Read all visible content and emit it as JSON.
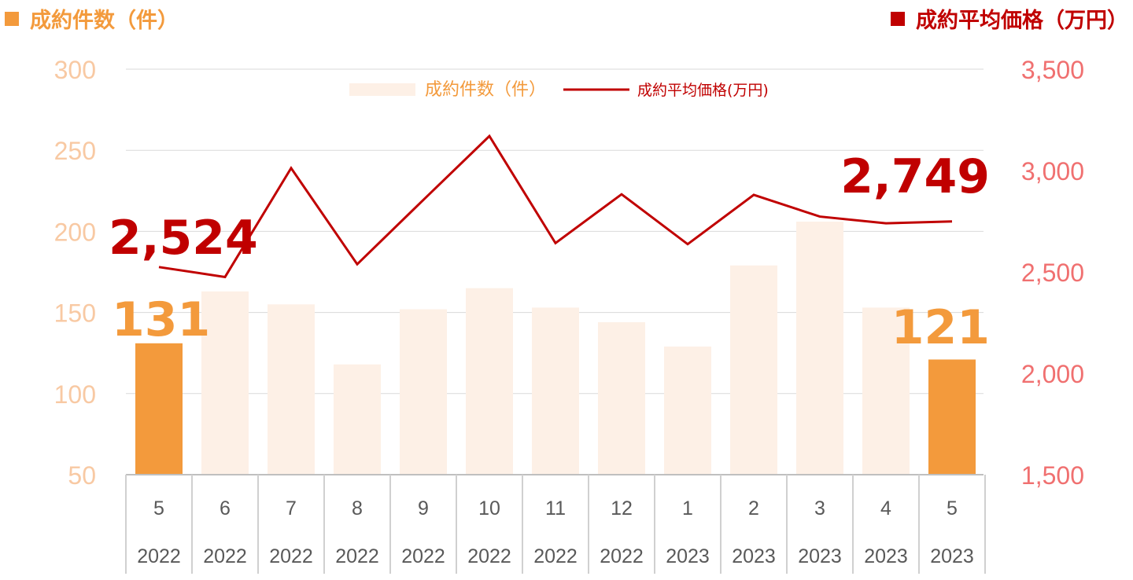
{
  "header": {
    "left_label": "成約件数（件）",
    "right_label": "成約平均価格（万円）"
  },
  "colors": {
    "bar_highlight": "#f39a3c",
    "bar_muted": "#fdf0e6",
    "line": "#c00000",
    "left_axis_text": "#f8c9a3",
    "right_axis_text": "#f07070",
    "callout_count": "#f39a3c",
    "callout_price": "#c00000"
  },
  "chart_data": {
    "type": "bar",
    "categories": [
      "5",
      "6",
      "7",
      "8",
      "9",
      "10",
      "11",
      "12",
      "1",
      "2",
      "3",
      "4",
      "5"
    ],
    "years": [
      "2022",
      "2022",
      "2022",
      "2022",
      "2022",
      "2022",
      "2022",
      "2022",
      "2023",
      "2023",
      "2023",
      "2023",
      "2023"
    ],
    "series": [
      {
        "name": "成約件数（件）",
        "type": "bar",
        "axis": "left",
        "values": [
          131,
          163,
          155,
          118,
          152,
          165,
          153,
          144,
          129,
          179,
          206,
          153,
          121
        ],
        "highlight_indices": [
          0,
          12
        ]
      },
      {
        "name": "成約平均価格(万円)",
        "type": "line",
        "axis": "right",
        "values": [
          2524,
          2475,
          3012,
          2538,
          2855,
          3170,
          2642,
          2883,
          2637,
          2880,
          2773,
          2740,
          2749
        ]
      }
    ],
    "left_axis": {
      "ylim": [
        50,
        300
      ],
      "ticks": [
        "50",
        "100",
        "150",
        "200",
        "250",
        "300"
      ]
    },
    "right_axis": {
      "ylim": [
        1500,
        3500
      ],
      "ticks": [
        "1,500",
        "2,000",
        "2,500",
        "3,000",
        "3,500"
      ]
    },
    "grid": true,
    "legend_position": "top-center",
    "callouts": {
      "count_first": "131",
      "count_last": "121",
      "price_first": "2,524",
      "price_last": "2,749"
    }
  }
}
